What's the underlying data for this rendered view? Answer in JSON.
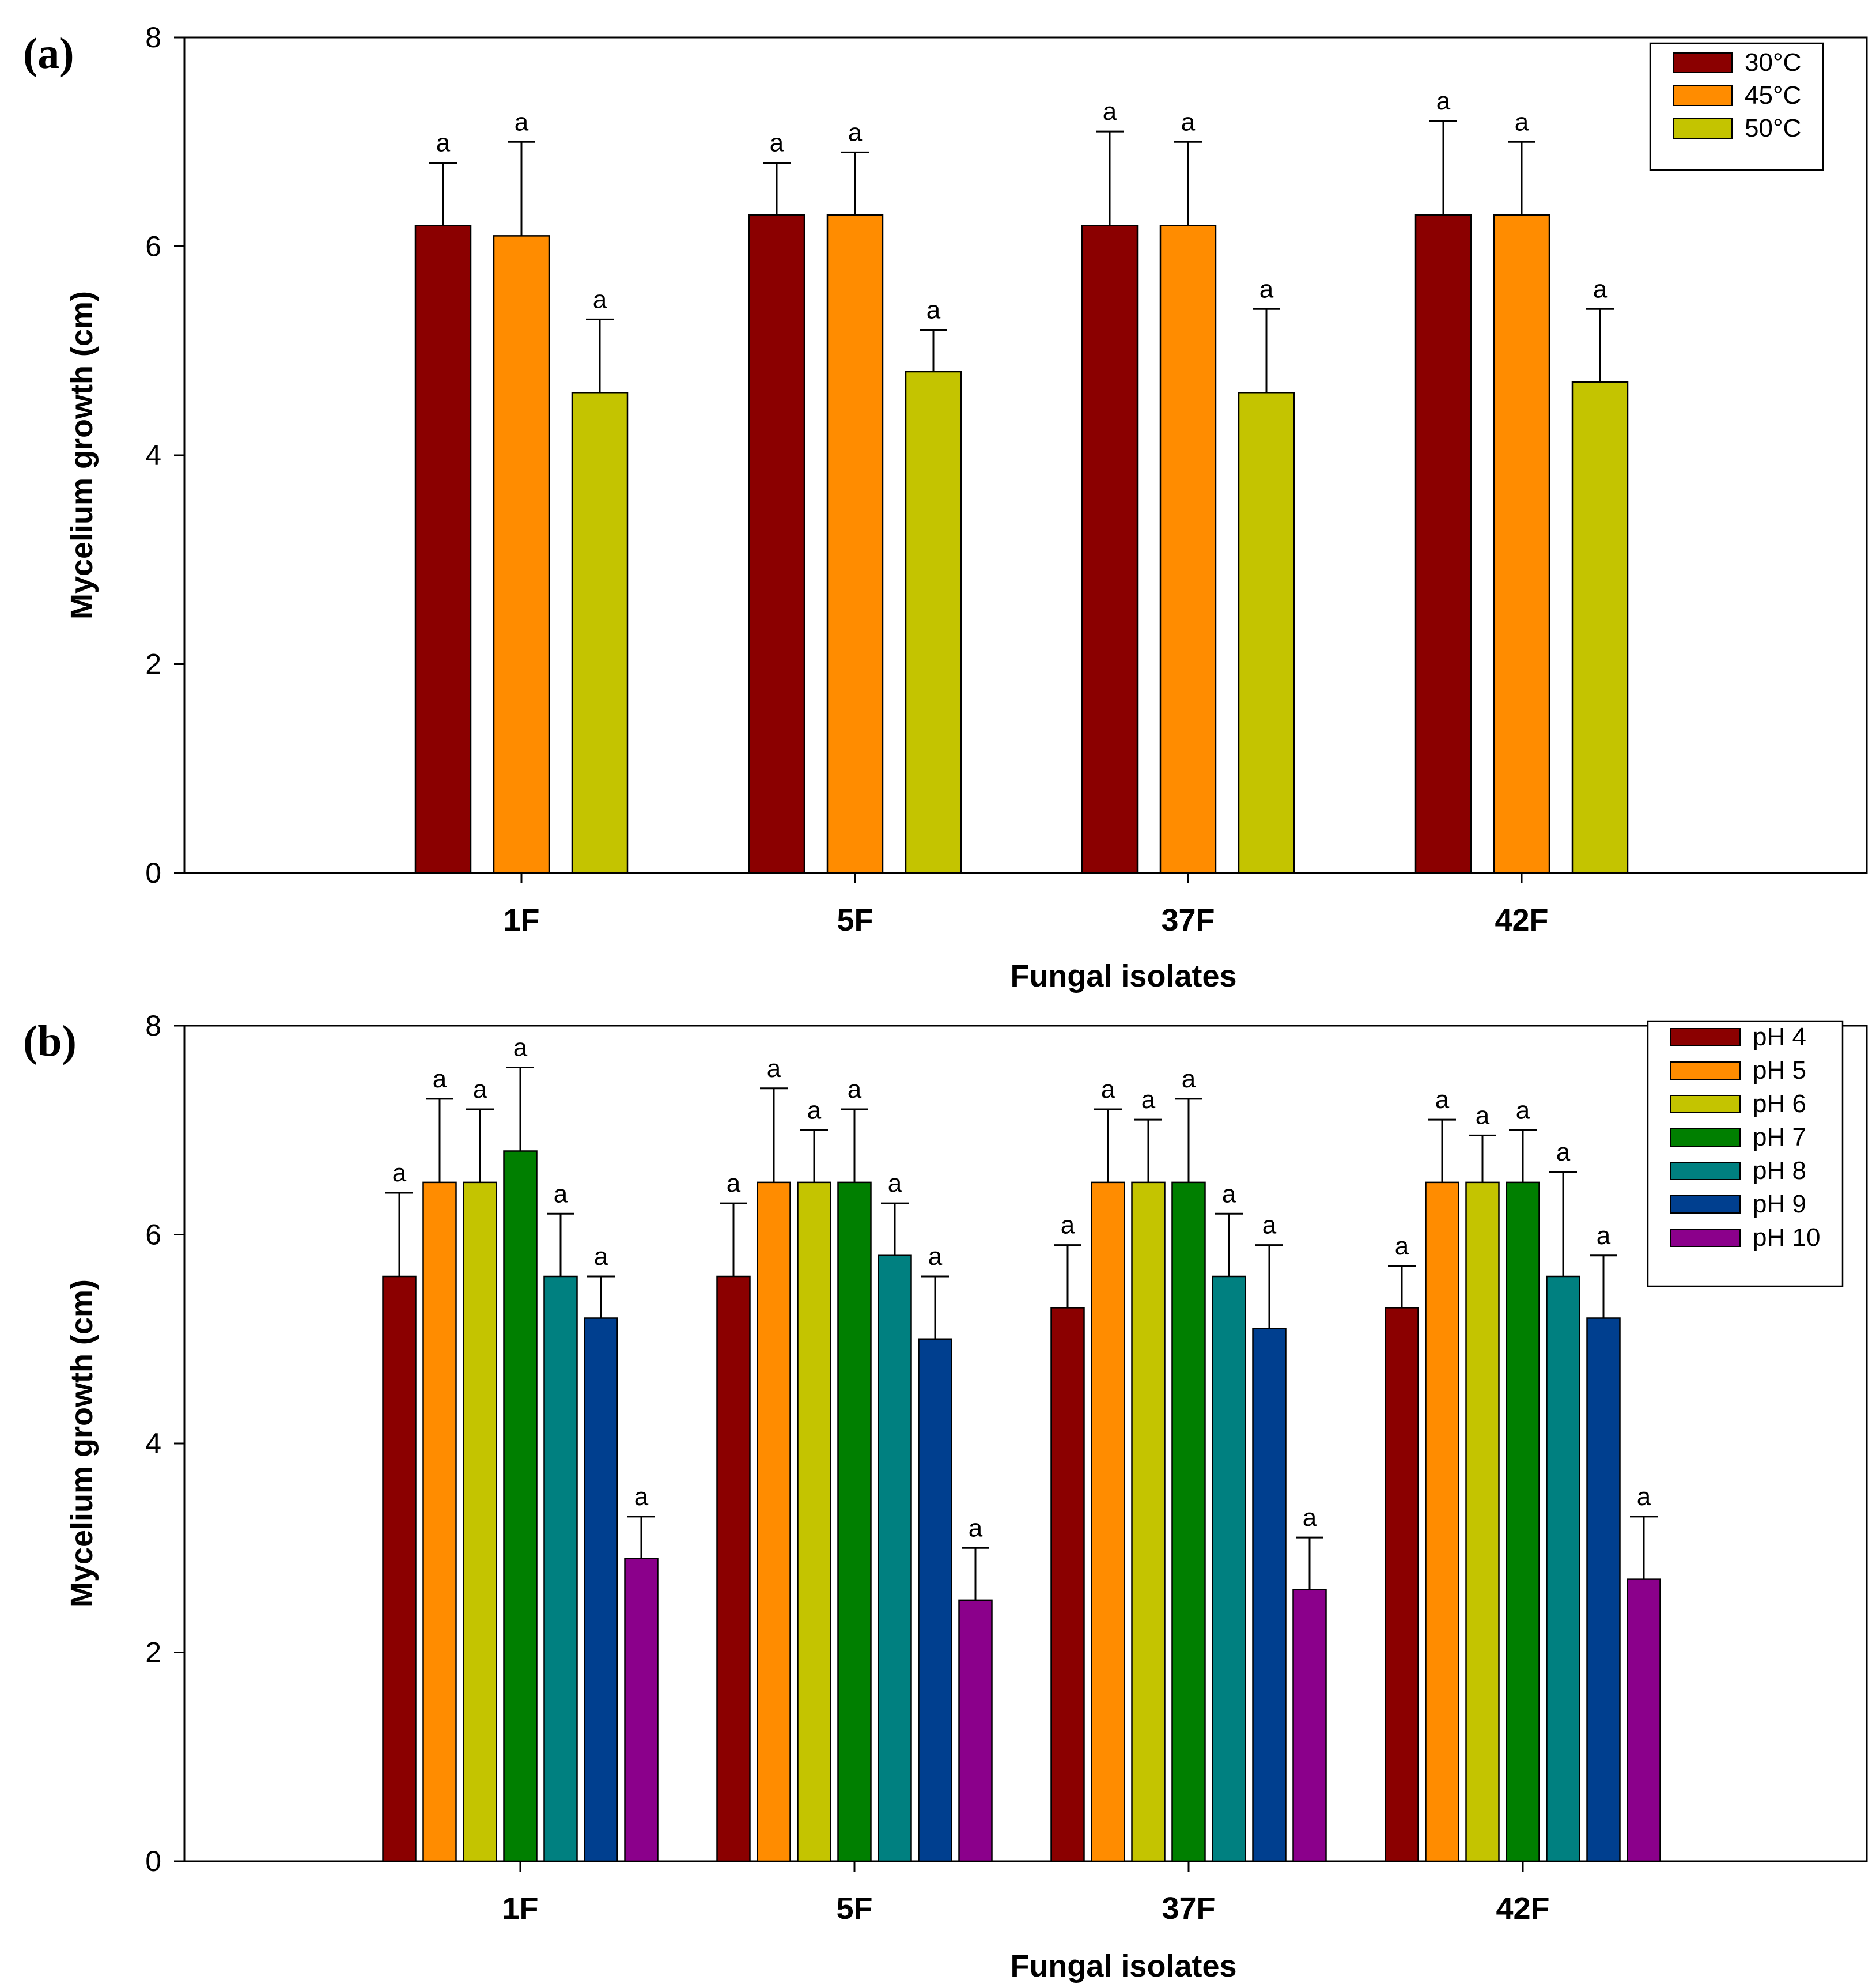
{
  "figure": {
    "panels": [
      {
        "panel_label": "(a)",
        "legend_labels": [
          "30°C",
          "45°C",
          "50°C"
        ]
      },
      {
        "panel_label": "(b)",
        "legend_labels": [
          "pH 4",
          "pH 5",
          "pH 6",
          "pH 7",
          "pH 8",
          "pH 9",
          "pH 10"
        ]
      }
    ]
  },
  "chart_data": [
    {
      "type": "bar",
      "title": "(a)",
      "xlabel": "Fungal isolates",
      "ylabel": "Mycelium growth (cm)",
      "ylim": [
        0,
        8
      ],
      "yticks": [
        0,
        2,
        4,
        6,
        8
      ],
      "categories": [
        "1F",
        "5F",
        "37F",
        "42F"
      ],
      "series": [
        {
          "name": "30°C",
          "color": "#8B0000",
          "values": [
            6.2,
            6.3,
            6.2,
            6.3
          ],
          "errors": [
            0.6,
            0.5,
            0.9,
            0.9
          ],
          "labels": [
            "a",
            "a",
            "a",
            "a"
          ]
        },
        {
          "name": "45°C",
          "color": "#FF8C00",
          "values": [
            6.1,
            6.3,
            6.2,
            6.3
          ],
          "errors": [
            0.9,
            0.6,
            0.8,
            0.7
          ],
          "labels": [
            "a",
            "a",
            "a",
            "a"
          ]
        },
        {
          "name": "50°C",
          "color": "#C4C400",
          "values": [
            4.6,
            4.8,
            4.6,
            4.7
          ],
          "errors": [
            0.7,
            0.4,
            0.8,
            0.7
          ],
          "labels": [
            "a",
            "a",
            "a",
            "a"
          ]
        }
      ],
      "legend": "top-right"
    },
    {
      "type": "bar",
      "title": "(b)",
      "xlabel": "Fungal isolates",
      "ylabel": "Mycelium growth (cm)",
      "ylim": [
        0,
        8
      ],
      "yticks": [
        0,
        2,
        4,
        6,
        8
      ],
      "categories": [
        "1F",
        "5F",
        "37F",
        "42F"
      ],
      "series": [
        {
          "name": "pH 4",
          "color": "#8B0000",
          "values": [
            5.6,
            5.6,
            5.3,
            5.3
          ],
          "errors": [
            0.8,
            0.7,
            0.6,
            0.4
          ],
          "labels": [
            "a",
            "a",
            "a",
            "a"
          ]
        },
        {
          "name": "pH 5",
          "color": "#FF8C00",
          "values": [
            6.5,
            6.5,
            6.5,
            6.5
          ],
          "errors": [
            0.8,
            0.9,
            0.7,
            0.6
          ],
          "labels": [
            "a",
            "a",
            "a",
            "a"
          ]
        },
        {
          "name": "pH 6",
          "color": "#C4C400",
          "values": [
            6.5,
            6.5,
            6.5,
            6.5
          ],
          "errors": [
            0.7,
            0.5,
            0.6,
            0.45
          ],
          "labels": [
            "a",
            "a",
            "a",
            "a"
          ]
        },
        {
          "name": "pH 7",
          "color": "#007F00",
          "values": [
            6.8,
            6.5,
            6.5,
            6.5
          ],
          "errors": [
            0.8,
            0.7,
            0.8,
            0.5
          ],
          "labels": [
            "a",
            "a",
            "a",
            "a"
          ]
        },
        {
          "name": "pH 8",
          "color": "#008080",
          "values": [
            5.6,
            5.8,
            5.6,
            5.6
          ],
          "errors": [
            0.6,
            0.5,
            0.6,
            1.0
          ],
          "labels": [
            "a",
            "a",
            "a",
            "a"
          ]
        },
        {
          "name": "pH 9",
          "color": "#003F8F",
          "values": [
            5.2,
            5.0,
            5.1,
            5.2
          ],
          "errors": [
            0.4,
            0.6,
            0.8,
            0.6
          ],
          "labels": [
            "a",
            "a",
            "a",
            "a"
          ]
        },
        {
          "name": "pH 10",
          "color": "#8B008B",
          "values": [
            2.9,
            2.5,
            2.6,
            2.7
          ],
          "errors": [
            0.4,
            0.5,
            0.5,
            0.6
          ],
          "labels": [
            "a",
            "a",
            "a",
            "a"
          ]
        }
      ],
      "legend": "top-right"
    }
  ]
}
